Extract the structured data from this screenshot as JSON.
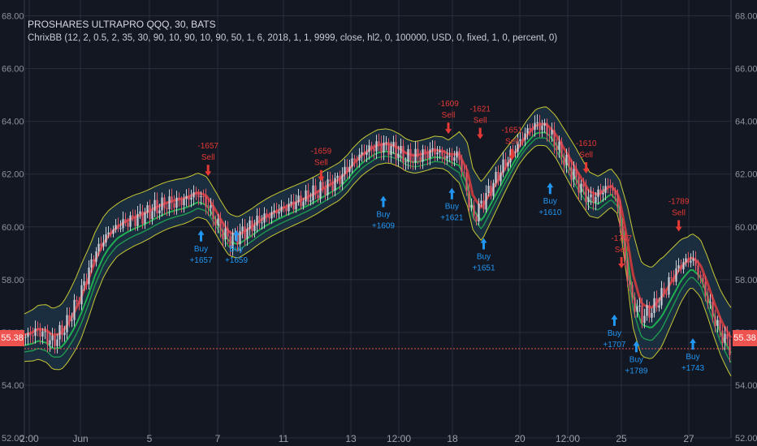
{
  "legend": {
    "title": "PROSHARES ULTRAPRO QQQ, 30, BATS",
    "study": "ChrixBB (12, 2, 0.5, 2, 35, 30, 90, 10, 90, 10, 90, 50, 1, 6, 2018, 1, 1, 9999, close, hl2, 0, 100000, USD, 0, fixed, 1, 0, percent, 0)"
  },
  "last_price_label": "55.38",
  "colors": {
    "background": "#131722",
    "grid": "#2a2e39",
    "up_candle": "#c9ced6",
    "down_candle": "#e05565",
    "outer_band": "#c8c832",
    "band_fill": "#1d3345",
    "mid_band": "#d23c3c",
    "inner_band": "#1fae50",
    "buy": "#2196f3",
    "sell": "#e53935",
    "price_line": "#ef5350"
  },
  "chart_data": {
    "type": "candlestick",
    "title": "PROSHARES ULTRAPRO QQQ, 30, BATS",
    "ylim": [
      52,
      68.6
    ],
    "y_ticks": [
      "68.00",
      "66.00",
      "64.00",
      "62.00",
      "60.00",
      "58.00",
      "56.00",
      "54.00",
      "52.00"
    ],
    "x_ticks": [
      "2:00",
      "Jun",
      "5",
      "7",
      "11",
      "13",
      "12:00",
      "18",
      "20",
      "12:00",
      "25",
      "27"
    ],
    "last_price": 55.38,
    "price_path": [
      [
        0,
        55.8
      ],
      [
        0.02,
        56.1
      ],
      [
        0.04,
        55.6
      ],
      [
        0.06,
        56.3
      ],
      [
        0.08,
        57.5
      ],
      [
        0.1,
        59.0
      ],
      [
        0.12,
        59.8
      ],
      [
        0.145,
        60.2
      ],
      [
        0.165,
        60.4
      ],
      [
        0.185,
        60.7
      ],
      [
        0.205,
        60.9
      ],
      [
        0.225,
        61.0
      ],
      [
        0.245,
        61.3
      ],
      [
        0.26,
        60.8
      ],
      [
        0.275,
        60.0
      ],
      [
        0.29,
        59.5
      ],
      [
        0.31,
        59.8
      ],
      [
        0.33,
        60.2
      ],
      [
        0.35,
        60.5
      ],
      [
        0.375,
        60.8
      ],
      [
        0.4,
        61.1
      ],
      [
        0.425,
        61.5
      ],
      [
        0.445,
        61.8
      ],
      [
        0.465,
        62.5
      ],
      [
        0.485,
        62.9
      ],
      [
        0.5,
        63.1
      ],
      [
        0.52,
        63.0
      ],
      [
        0.54,
        62.6
      ],
      [
        0.56,
        62.7
      ],
      [
        0.58,
        62.9
      ],
      [
        0.6,
        62.6
      ],
      [
        0.615,
        62.7
      ],
      [
        0.625,
        61.5
      ],
      [
        0.635,
        60.3
      ],
      [
        0.65,
        61.0
      ],
      [
        0.665,
        61.7
      ],
      [
        0.68,
        62.4
      ],
      [
        0.695,
        63.0
      ],
      [
        0.71,
        63.6
      ],
      [
        0.725,
        63.9
      ],
      [
        0.74,
        63.7
      ],
      [
        0.755,
        63.0
      ],
      [
        0.77,
        62.3
      ],
      [
        0.785,
        61.6
      ],
      [
        0.8,
        61.0
      ],
      [
        0.815,
        61.3
      ],
      [
        0.83,
        61.6
      ],
      [
        0.84,
        60.8
      ],
      [
        0.85,
        58.7
      ],
      [
        0.86,
        57.2
      ],
      [
        0.875,
        56.6
      ],
      [
        0.89,
        56.9
      ],
      [
        0.905,
        57.5
      ],
      [
        0.915,
        58.0
      ],
      [
        0.93,
        58.6
      ],
      [
        0.945,
        58.8
      ],
      [
        0.955,
        58.2
      ],
      [
        0.965,
        57.4
      ],
      [
        0.975,
        56.6
      ],
      [
        0.985,
        56.0
      ],
      [
        1.0,
        55.4
      ]
    ],
    "band_half_width": [
      [
        0,
        0.9
      ],
      [
        0.08,
        1.4
      ],
      [
        0.13,
        1.0
      ],
      [
        0.27,
        0.8
      ],
      [
        0.47,
        0.7
      ],
      [
        0.55,
        0.6
      ],
      [
        0.6,
        0.6
      ],
      [
        0.625,
        1.2
      ],
      [
        0.65,
        1.1
      ],
      [
        0.7,
        0.6
      ],
      [
        0.78,
        0.9
      ],
      [
        0.84,
        0.7
      ],
      [
        0.86,
        1.8
      ],
      [
        0.9,
        1.7
      ],
      [
        0.94,
        1.0
      ],
      [
        1.0,
        1.3
      ]
    ],
    "signals": [
      {
        "type": "Sell",
        "value": "-1657",
        "x_frac": 0.26,
        "y": 61.8
      },
      {
        "type": "Sell",
        "value": "-1659",
        "x_frac": 0.42,
        "y": 61.6
      },
      {
        "type": "Sell",
        "value": "-1609",
        "x_frac": 0.6,
        "y": 63.4
      },
      {
        "type": "Sell",
        "value": "-1621",
        "x_frac": 0.645,
        "y": 63.2
      },
      {
        "type": "Sell",
        "value": "-1651",
        "x_frac": 0.69,
        "y": 62.4
      },
      {
        "type": "Sell",
        "value": "-1610",
        "x_frac": 0.795,
        "y": 61.9
      },
      {
        "type": "Sell",
        "value": "-1707",
        "x_frac": 0.845,
        "y": 58.3
      },
      {
        "type": "Sell",
        "value": "-1789",
        "x_frac": 0.926,
        "y": 59.7
      },
      {
        "type": "Buy",
        "value": "+1657",
        "x_frac": 0.25,
        "y": 60.0
      },
      {
        "type": "Buy",
        "value": "+1659",
        "x_frac": 0.3,
        "y": 60.0
      },
      {
        "type": "Buy",
        "value": "+1609",
        "x_frac": 0.508,
        "y": 61.3
      },
      {
        "type": "Buy",
        "value": "+1621",
        "x_frac": 0.605,
        "y": 61.6
      },
      {
        "type": "Buy",
        "value": "+1651",
        "x_frac": 0.65,
        "y": 59.7
      },
      {
        "type": "Buy",
        "value": "+1610",
        "x_frac": 0.744,
        "y": 61.8
      },
      {
        "type": "Buy",
        "value": "+1707",
        "x_frac": 0.835,
        "y": 56.8
      },
      {
        "type": "Buy",
        "value": "+1789",
        "x_frac": 0.866,
        "y": 55.8
      },
      {
        "type": "Buy",
        "value": "+1743",
        "x_frac": 0.946,
        "y": 55.9
      }
    ]
  }
}
